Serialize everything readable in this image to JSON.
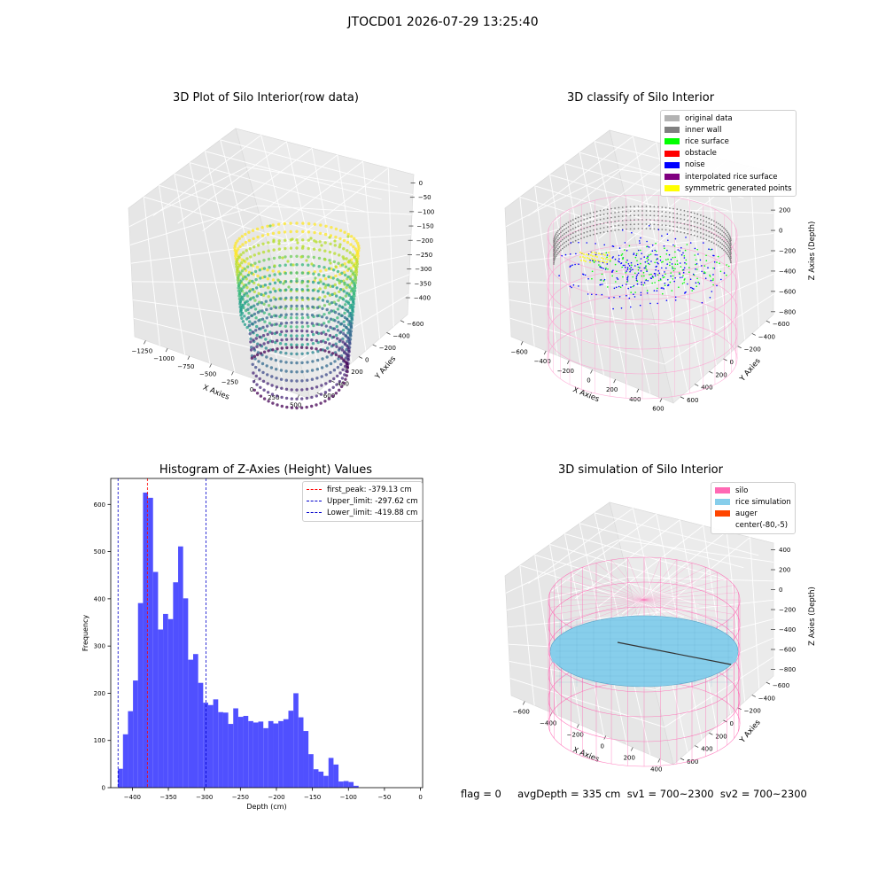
{
  "suptitle": "JTOCD01 2026-07-29 13:25:40",
  "panels": {
    "raw": {
      "title": "3D Plot of Silo Interior(row data)",
      "xlabel": "X Axies",
      "ylabel": "Y Axies",
      "zlabel": "Z Axies (Depth)",
      "xticks": [
        "−1250",
        "−1000",
        "−750",
        "−500",
        "−250",
        "0",
        "250",
        "500"
      ],
      "yticks": [
        "600",
        "400",
        "200",
        "0",
        "−200",
        "−400",
        "−600"
      ],
      "zticks": [
        "0",
        "−50",
        "−100",
        "−150",
        "−200",
        "−250",
        "−300",
        "−350",
        "−400"
      ]
    },
    "classify": {
      "title": "3D classify of Silo Interior",
      "xlabel": "X Axies",
      "ylabel": "Y Axies",
      "zlabel": "Z Axies (Depth)",
      "xticks": [
        "−600",
        "−400",
        "−200",
        "0",
        "200",
        "400",
        "600"
      ],
      "yticks": [
        "600",
        "400",
        "200",
        "0",
        "−200",
        "−400",
        "−600"
      ],
      "zticks": [
        "400",
        "200",
        "0",
        "−200",
        "−400",
        "−600",
        "−800"
      ],
      "legend": [
        {
          "label": "original data",
          "color": "#b3b3b3"
        },
        {
          "label": "inner wall",
          "color": "#808080"
        },
        {
          "label": "rice surface",
          "color": "#00ff00"
        },
        {
          "label": "obstacle",
          "color": "#ff0000"
        },
        {
          "label": "noise",
          "color": "#0000ff"
        },
        {
          "label": "interpolated rice surface",
          "color": "#800080"
        },
        {
          "label": "symmetric generated points",
          "color": "#ffff00"
        }
      ]
    },
    "simulation": {
      "title": "3D simulation of Silo Interior",
      "xlabel": "X Axies",
      "ylabel": "Y Axies",
      "zlabel": "Z Axies (Depth)",
      "xticks": [
        "−600",
        "−400",
        "−200",
        "0",
        "200",
        "400"
      ],
      "yticks": [
        "600",
        "400",
        "200",
        "0",
        "−200",
        "−400",
        "−600"
      ],
      "zticks": [
        "400",
        "200",
        "0",
        "−200",
        "−400",
        "−600",
        "−800"
      ],
      "legend": [
        {
          "label": "silo",
          "color": "#ff69b4"
        },
        {
          "label": "rice simulation",
          "color": "#87ceeb"
        },
        {
          "label": "auger",
          "color": "#ff4500"
        },
        {
          "label": "center(-80,-5)",
          "color": "#ffffff"
        }
      ]
    }
  },
  "chart_data": {
    "type": "bar",
    "title": "Histogram of Z-Axies (Height) Values",
    "xlabel": "Depth (cm)",
    "ylabel": "Frequency",
    "xlim": [
      -430,
      3
    ],
    "ylim": [
      0,
      655
    ],
    "xticks": [
      -400,
      -350,
      -300,
      -250,
      -200,
      -150,
      -100,
      -50,
      0
    ],
    "yticks": [
      0,
      100,
      200,
      300,
      400,
      500,
      600
    ],
    "bin_start": -420,
    "bin_width": 6.96,
    "values": [
      40,
      113,
      162,
      227,
      391,
      625,
      614,
      457,
      335,
      368,
      357,
      435,
      511,
      401,
      271,
      283,
      222,
      180,
      175,
      187,
      160,
      159,
      135,
      168,
      150,
      152,
      141,
      138,
      140,
      126,
      141,
      136,
      141,
      145,
      163,
      200,
      149,
      120,
      71,
      39,
      34,
      25,
      63,
      49,
      13,
      14,
      12,
      4
    ],
    "bar_color": "#5050ff",
    "legend_position": "top-right",
    "lines": [
      {
        "label": "first_peak: -379.13 cm",
        "x": -379.13,
        "color": "#ff0000"
      },
      {
        "label": "Upper_limit: -297.62 cm",
        "x": -297.62,
        "color": "#0000cc"
      },
      {
        "label": "Lower_limit: -419.88 cm",
        "x": -419.88,
        "color": "#0000cc"
      }
    ]
  },
  "footer": "flag = 0     avgDepth = 335 cm  sv1 = 700~2300  sv2 = 700~2300"
}
